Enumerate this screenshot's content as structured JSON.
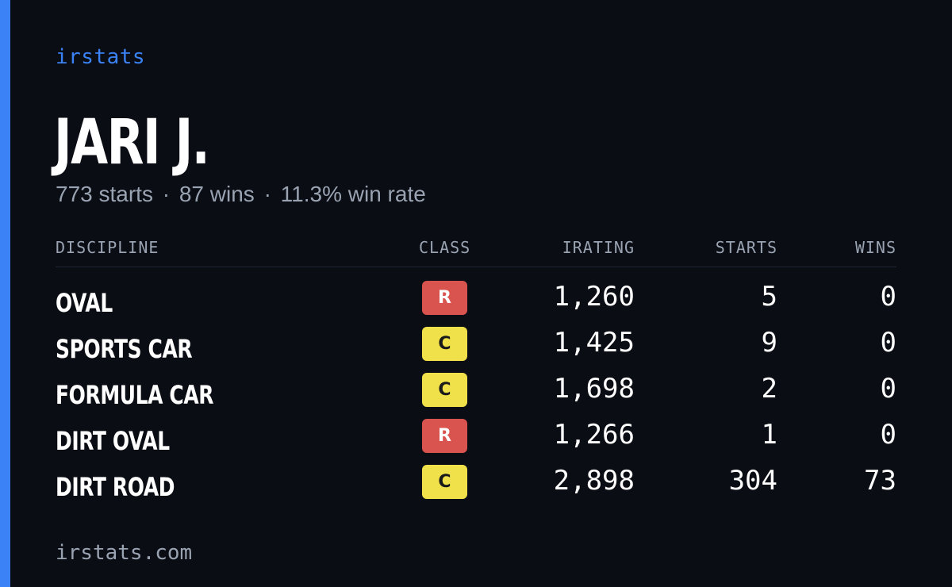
{
  "brand": "irstats",
  "driver": {
    "name": "JARI J.",
    "starts_text": "773 starts",
    "wins_text": "87 wins",
    "win_rate_text": "11.3% win rate",
    "separator": "·"
  },
  "table": {
    "headers": {
      "discipline": "DISCIPLINE",
      "class": "CLASS",
      "irating": "IRATING",
      "starts": "STARTS",
      "wins": "WINS"
    },
    "rows": [
      {
        "discipline": "OVAL",
        "class": "R",
        "irating": "1,260",
        "starts": "5",
        "wins": "0"
      },
      {
        "discipline": "SPORTS CAR",
        "class": "C",
        "irating": "1,425",
        "starts": "9",
        "wins": "0"
      },
      {
        "discipline": "FORMULA CAR",
        "class": "C",
        "irating": "1,698",
        "starts": "2",
        "wins": "0"
      },
      {
        "discipline": "DIRT OVAL",
        "class": "R",
        "irating": "1,266",
        "starts": "1",
        "wins": "0"
      },
      {
        "discipline": "DIRT ROAD",
        "class": "C",
        "irating": "2,898",
        "starts": "304",
        "wins": "73"
      }
    ]
  },
  "footer": {
    "url": "irstats.com"
  },
  "colors": {
    "background": "#0a0d14",
    "accent": "#3b82f6",
    "class_r": "#d9534f",
    "class_c": "#f0e14a",
    "muted_text": "#9aa3b2"
  }
}
